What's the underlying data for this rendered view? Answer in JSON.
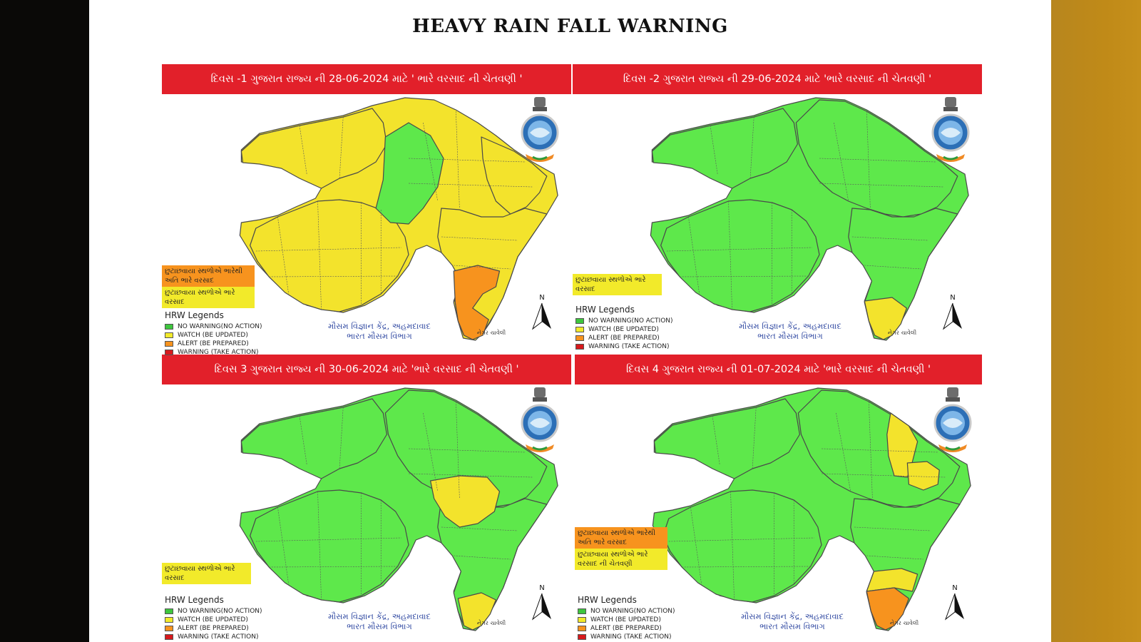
{
  "title": "HEAVY RAIN FALL WARNING",
  "legend_title": "HRW Legends",
  "legend_items": [
    {
      "label": "NO WARNING(NO ACTION)",
      "color": "#3ec63e"
    },
    {
      "label": "WATCH (BE UPDATED)",
      "color": "#f2ea2a"
    },
    {
      "label": "ALERT (BE PREPARED)",
      "color": "#f7931e"
    },
    {
      "label": "WARNING (TAKE ACTION)",
      "color": "#d7191c"
    }
  ],
  "office_line1": "મૌસમ વિજ્ઞાન કેંદ્ર, અહમદાવાદ",
  "office_line2": "ભારત મૌસમ વિભાગ",
  "north_label": "N",
  "credit": "નેગર ચાવેલી",
  "colors": {
    "green": "#5ee84b",
    "yellow": "#f3e32c",
    "orange": "#f7931e",
    "red": "#e2202a"
  },
  "panels": [
    {
      "banner": "દિવસ -1 ગુજરાત રાજ્ય ની 28-06-2024 માટે ' ભારે વરસાદ ની ચેતવણી '",
      "categories": [
        {
          "label": "છુટાછવાયા સ્થળોએ ભારેથી અતિ ભારે વરસાદ",
          "color": "orange"
        },
        {
          "label": "છુટાછવાયા સ્થળોએ ભારે વરસાદ",
          "color": "yellow"
        }
      ]
    },
    {
      "banner": "દિવસ -2 ગુજરાત રાજ્ય ની 29-06-2024 માટે 'ભારે વરસાદ ની ચેતવણી '",
      "categories": [
        {
          "label": "છુટાછવાયા સ્થળોએ ભારે વરસાદ",
          "color": "yellow"
        }
      ]
    },
    {
      "banner": "દિવસ 3 ગુજરાત રાજ્ય ની 30-06-2024 માટે 'ભારે વરસાદ ની ચેતવણી '",
      "categories": [
        {
          "label": "છુટાછવાયા સ્થળોએ ભારે વરસાદ",
          "color": "yellow"
        }
      ]
    },
    {
      "banner": "દિવસ 4 ગુજરાત રાજ્ય ની  01-07-2024 માટે 'ભારે વરસાદ ની ચેતવણી '",
      "categories": [
        {
          "label": "છુટાછવાયા સ્થળોએ ભારેથી અતિ ભારે વરસાદ",
          "color": "orange"
        },
        {
          "label": "છુટાછવાયા સ્થળોએ ભારે વરસાદ ની ચેતવણી",
          "color": "yellow"
        }
      ]
    }
  ]
}
